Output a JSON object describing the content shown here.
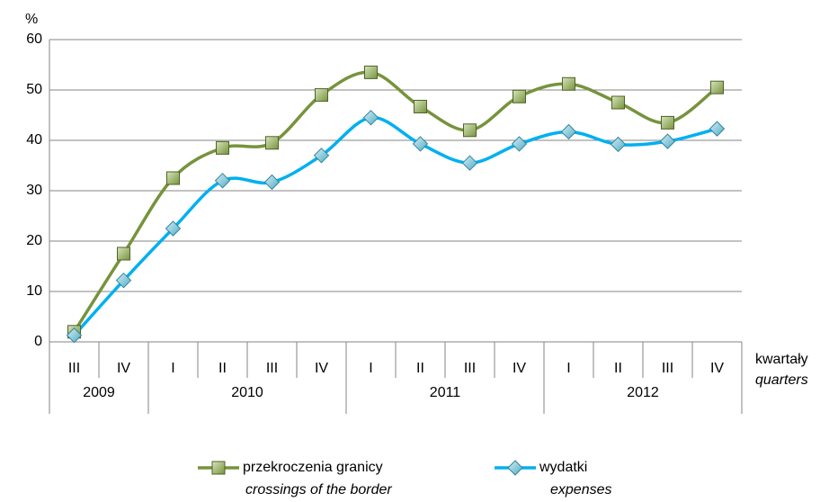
{
  "chart_data": {
    "type": "line",
    "y_label": "%",
    "x_label": "kwartały",
    "x_label_en": "quarters",
    "categories": [
      {
        "quarter": "III",
        "year": "2009"
      },
      {
        "quarter": "IV",
        "year": "2009"
      },
      {
        "quarter": "I",
        "year": "2010"
      },
      {
        "quarter": "II",
        "year": "2010"
      },
      {
        "quarter": "III",
        "year": "2010"
      },
      {
        "quarter": "IV",
        "year": "2010"
      },
      {
        "quarter": "I",
        "year": "2011"
      },
      {
        "quarter": "II",
        "year": "2011"
      },
      {
        "quarter": "III",
        "year": "2011"
      },
      {
        "quarter": "IV",
        "year": "2011"
      },
      {
        "quarter": "I",
        "year": "2012"
      },
      {
        "quarter": "II",
        "year": "2012"
      },
      {
        "quarter": "III",
        "year": "2012"
      },
      {
        "quarter": "IV",
        "year": "2012"
      }
    ],
    "series": [
      {
        "name": "przekroczenia granicy",
        "name_en": "crossings of the border",
        "color": "#77933c",
        "marker": "square",
        "values": [
          2,
          17.5,
          32.5,
          38.5,
          39.5,
          49,
          53.5,
          46.7,
          42,
          48.7,
          51.2,
          47.5,
          43.5,
          50.5
        ]
      },
      {
        "name": "wydatki",
        "name_en": "expenses",
        "color": "#00b0f0",
        "marker": "diamond",
        "values": [
          1.3,
          12.2,
          22.5,
          32,
          31.7,
          37,
          44.5,
          39.3,
          35.5,
          39.3,
          41.7,
          39.2,
          39.8,
          42.3
        ]
      }
    ],
    "ylim": [
      0,
      60
    ],
    "yticks": [
      0,
      10,
      20,
      30,
      40,
      50,
      60
    ],
    "grid": true,
    "legend": "bottom"
  }
}
